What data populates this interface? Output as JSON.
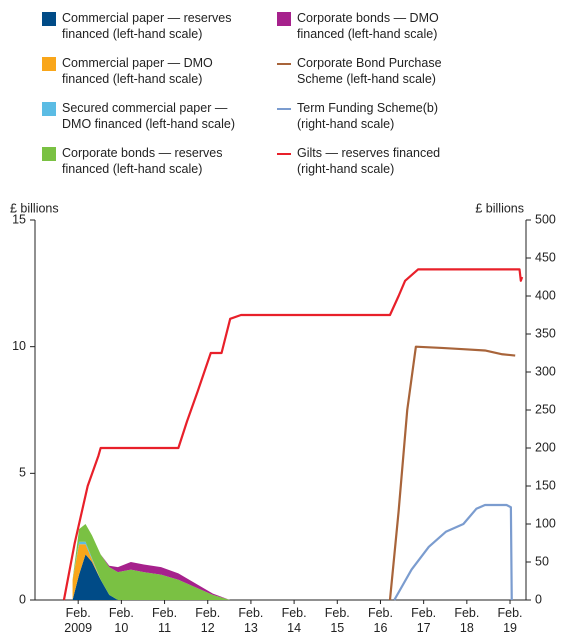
{
  "chart_data": {
    "type": "area",
    "stacked": true,
    "y_label": "£ billions",
    "y2_label": "£ billions",
    "xlim": [
      2008.08,
      2019.45
    ],
    "xticks": [
      {
        "value": 2009.08,
        "label": "Feb. 2009"
      },
      {
        "value": 2010.08,
        "label": "Feb. 10"
      },
      {
        "value": 2011.08,
        "label": "Feb. 11"
      },
      {
        "value": 2012.08,
        "label": "Feb. 12"
      },
      {
        "value": 2013.08,
        "label": "Feb. 13"
      },
      {
        "value": 2014.08,
        "label": "Feb. 14"
      },
      {
        "value": 2015.08,
        "label": "Feb. 15"
      },
      {
        "value": 2016.08,
        "label": "Feb. 16"
      },
      {
        "value": 2017.08,
        "label": "Feb. 17"
      },
      {
        "value": 2018.08,
        "label": "Feb. 18"
      },
      {
        "value": 2019.08,
        "label": "Feb. 19"
      }
    ],
    "ylim": [
      0,
      15
    ],
    "yticks": [
      0,
      5,
      10,
      15
    ],
    "y2lim": [
      0,
      500
    ],
    "y2ticks": [
      0,
      50,
      100,
      150,
      200,
      250,
      300,
      350,
      400,
      450,
      500
    ],
    "series": [
      {
        "name": "Commercial paper — reserves financed (left-hand scale)",
        "type": "area",
        "color": "#004b87",
        "x": [
          2008.95,
          2009.1,
          2009.25,
          2009.4,
          2009.6,
          2009.8,
          2010.0,
          2010.3,
          2010.6,
          2011.0,
          2011.4,
          2011.8,
          2012.2,
          2012.6
        ],
        "values": [
          0,
          1.0,
          1.8,
          1.5,
          0.8,
          0.2,
          0,
          0,
          0,
          0,
          0,
          0,
          0,
          0
        ]
      },
      {
        "name": "Commercial paper — DMO financed (left-hand scale)",
        "type": "area",
        "color": "#f9a61a",
        "x": [
          2008.95,
          2009.1,
          2009.25,
          2009.4,
          2009.6,
          2009.8,
          2010.0,
          2010.3,
          2010.6,
          2011.0,
          2011.4,
          2011.8,
          2012.2,
          2012.6
        ],
        "values": [
          0.8,
          1.2,
          0.4,
          0.1,
          0,
          0,
          0,
          0,
          0,
          0,
          0,
          0,
          0,
          0
        ]
      },
      {
        "name": "Secured commercial paper — DMO financed (left-hand scale)",
        "type": "area",
        "color": "#5bbce4",
        "x": [
          2008.95,
          2009.1,
          2009.25,
          2009.4,
          2009.6,
          2009.8,
          2010.0,
          2010.3,
          2010.6,
          2011.0,
          2011.4,
          2011.8,
          2012.2,
          2012.6
        ],
        "values": [
          0,
          0.1,
          0.1,
          0.05,
          0,
          0,
          0,
          0,
          0,
          0,
          0,
          0,
          0,
          0
        ]
      },
      {
        "name": "Corporate bonds — reserves financed (left-hand scale)",
        "type": "area",
        "color": "#7ac143",
        "x": [
          2008.95,
          2009.1,
          2009.25,
          2009.4,
          2009.6,
          2009.8,
          2010.0,
          2010.3,
          2010.6,
          2011.0,
          2011.4,
          2011.8,
          2012.2,
          2012.6
        ],
        "values": [
          0,
          0.5,
          0.7,
          0.9,
          1.0,
          1.1,
          1.1,
          1.2,
          1.1,
          1.0,
          0.8,
          0.5,
          0.2,
          0
        ]
      },
      {
        "name": "Corporate bonds — DMO financed (left-hand scale)",
        "type": "area",
        "color": "#a6218c",
        "x": [
          2008.95,
          2009.1,
          2009.25,
          2009.4,
          2009.6,
          2009.8,
          2010.0,
          2010.3,
          2010.6,
          2011.0,
          2011.4,
          2011.8,
          2012.2,
          2012.6
        ],
        "values": [
          0,
          0,
          0,
          0,
          0,
          0.05,
          0.2,
          0.3,
          0.3,
          0.3,
          0.25,
          0.15,
          0.05,
          0
        ]
      },
      {
        "name": "Corporate Bond Purchase Scheme (left-hand scale)",
        "type": "line",
        "color": "#a8643a",
        "x": [
          2016.3,
          2016.5,
          2016.7,
          2016.9,
          2017.5,
          2018.0,
          2018.5,
          2018.9,
          2019.2
        ],
        "values": [
          0,
          3.5,
          7.5,
          10.0,
          9.95,
          9.9,
          9.85,
          9.7,
          9.65
        ]
      },
      {
        "name": "Term Funding Scheme(b) (right-hand scale)",
        "type": "line",
        "axis": "y2",
        "color": "#7b9ccf",
        "x": [
          2016.4,
          2016.8,
          2017.2,
          2017.6,
          2018.0,
          2018.3,
          2018.5,
          2019.0,
          2019.1,
          2019.12
        ],
        "values": [
          0,
          40,
          70,
          90,
          100,
          120,
          125,
          125,
          122,
          0
        ]
      },
      {
        "name": "Gilts — reserves financed (right-hand scale)",
        "type": "line",
        "axis": "y2",
        "color": "#e8202a",
        "x": [
          2008.75,
          2009.0,
          2009.3,
          2009.55,
          2009.6,
          2011.4,
          2011.6,
          2011.85,
          2012.0,
          2012.15,
          2012.4,
          2012.6,
          2012.85,
          2016.3,
          2016.5,
          2016.65,
          2016.95,
          2019.3,
          2019.33,
          2019.36
        ],
        "values": [
          0,
          75,
          150,
          190,
          200,
          200,
          235,
          275,
          300,
          325,
          325,
          370,
          375,
          375,
          400,
          420,
          435,
          435,
          420,
          425
        ]
      }
    ]
  }
}
